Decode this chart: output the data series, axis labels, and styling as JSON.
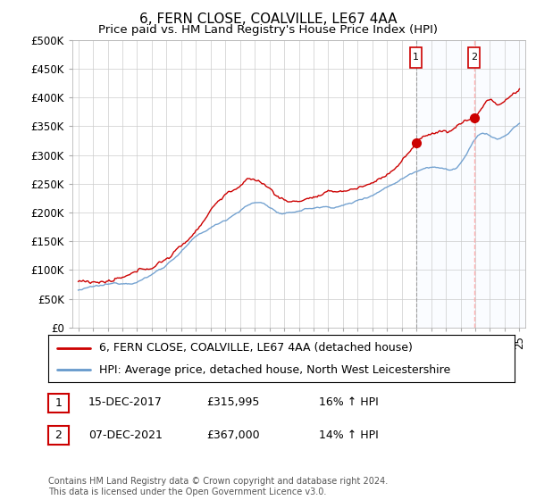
{
  "title": "6, FERN CLOSE, COALVILLE, LE67 4AA",
  "subtitle": "Price paid vs. HM Land Registry's House Price Index (HPI)",
  "ylabel_ticks": [
    "£0",
    "£50K",
    "£100K",
    "£150K",
    "£200K",
    "£250K",
    "£300K",
    "£350K",
    "£400K",
    "£450K",
    "£500K"
  ],
  "ytick_values": [
    0,
    50000,
    100000,
    150000,
    200000,
    250000,
    300000,
    350000,
    400000,
    450000,
    500000
  ],
  "ylim": [
    0,
    500000
  ],
  "x_start_year": 1995,
  "x_end_year": 2025,
  "marker1_date": "15-DEC-2017",
  "marker1_price": 315995,
  "marker1_hpi_pct": "16%",
  "marker1_x": 2017.96,
  "marker2_date": "07-DEC-2021",
  "marker2_price": 367000,
  "marker2_hpi_pct": "14%",
  "marker2_x": 2021.93,
  "legend_line1": "6, FERN CLOSE, COALVILLE, LE67 4AA (detached house)",
  "legend_line2": "HPI: Average price, detached house, North West Leicestershire",
  "footnote": "Contains HM Land Registry data © Crown copyright and database right 2024.\nThis data is licensed under the Open Government Licence v3.0.",
  "hpi_color": "#6699cc",
  "price_color": "#cc0000",
  "marker_color": "#cc0000",
  "vline1_color": "#999999",
  "vline2_color": "#ffaaaa",
  "shade_color": "#ddeeff",
  "background_color": "#ffffff",
  "grid_color": "#cccccc",
  "title_fontsize": 11,
  "subtitle_fontsize": 9.5,
  "tick_fontsize": 8.5,
  "legend_fontsize": 9
}
